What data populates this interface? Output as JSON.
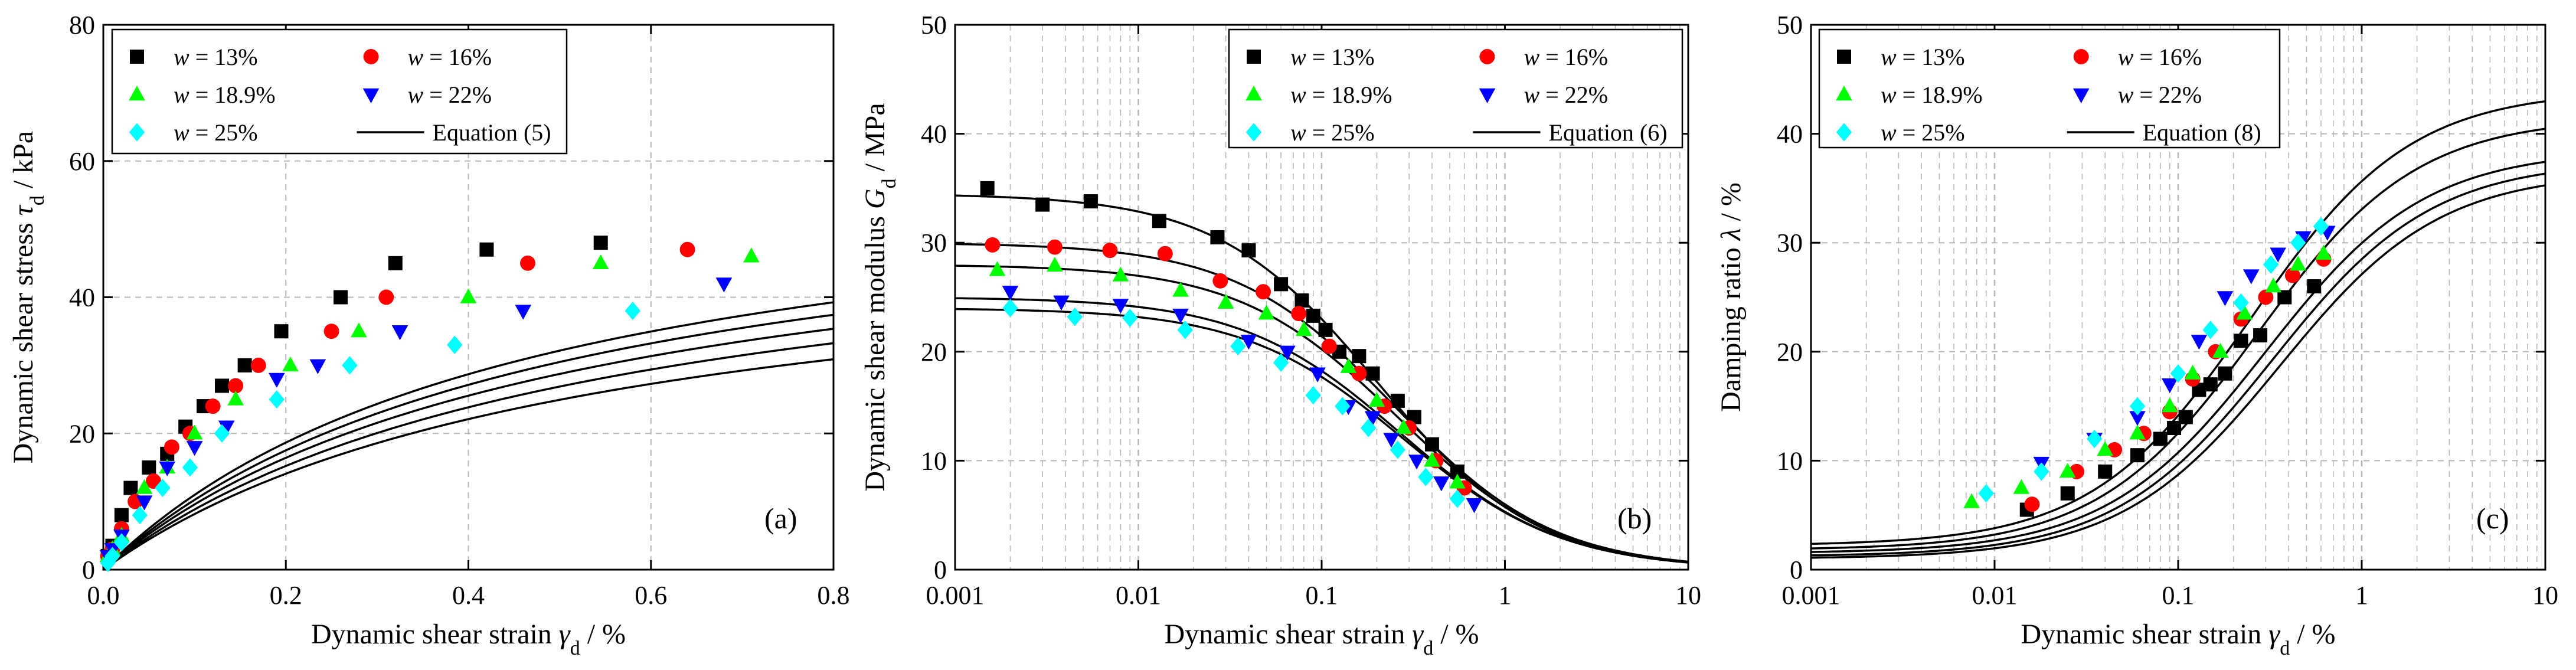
{
  "chart_data": [
    {
      "type": "scatter",
      "panel_label": "(a)",
      "xlabel": "Dynamic shear strain γd / %",
      "ylabel": "Dynamic shear stress τd / kPa",
      "xscale": "linear",
      "xlim": [
        0,
        0.8
      ],
      "ylim": [
        0,
        80
      ],
      "xticks": [
        "0.0",
        "0.2",
        "0.4",
        "0.6",
        "0.8"
      ],
      "yticks": [
        "0",
        "20",
        "40",
        "60",
        "80"
      ],
      "grid": true,
      "legend_position": "top-left",
      "fit_label": "Equation (5)",
      "series": [
        {
          "name": "w = 13%",
          "color": "#000000",
          "marker": "square",
          "x": [
            0.005,
            0.01,
            0.02,
            0.03,
            0.05,
            0.07,
            0.09,
            0.11,
            0.13,
            0.155,
            0.195,
            0.26,
            0.32,
            0.42,
            0.545
          ],
          "y": [
            2,
            3.5,
            8,
            12,
            15,
            17,
            21,
            24,
            27,
            30,
            35,
            40,
            45,
            47,
            48
          ],
          "fit": {
            "a": 0.0075,
            "b": 0.0161
          }
        },
        {
          "name": "w = 16%",
          "color": "#ff0000",
          "marker": "circle",
          "x": [
            0.005,
            0.01,
            0.02,
            0.035,
            0.055,
            0.075,
            0.095,
            0.12,
            0.145,
            0.17,
            0.25,
            0.31,
            0.465,
            0.64
          ],
          "y": [
            2,
            3,
            6,
            10,
            13,
            18,
            20,
            24,
            27,
            30,
            35,
            40,
            45,
            47
          ],
          "fit": {
            "a": 0.0081,
            "b": 0.0166
          }
        },
        {
          "name": "w = 18.9%",
          "color": "#00ff00",
          "marker": "triangle-up",
          "x": [
            0.005,
            0.01,
            0.02,
            0.045,
            0.07,
            0.1,
            0.145,
            0.205,
            0.28,
            0.4,
            0.545,
            0.71
          ],
          "y": [
            2,
            3,
            5,
            12,
            15,
            20,
            25,
            30,
            35,
            40,
            45,
            46
          ],
          "fit": {
            "a": 0.0087,
            "b": 0.0174
          }
        },
        {
          "name": "w = 22%",
          "color": "#0000ff",
          "marker": "triangle-down",
          "x": [
            0.005,
            0.01,
            0.02,
            0.045,
            0.07,
            0.1,
            0.135,
            0.19,
            0.235,
            0.325,
            0.46,
            0.68
          ],
          "y": [
            2,
            3,
            5,
            10,
            15,
            18,
            21,
            28,
            30,
            35,
            38,
            42
          ],
          "fit": {
            "a": 0.0095,
            "b": 0.0182
          }
        },
        {
          "name": "w = 25%",
          "color": "#00ffff",
          "marker": "diamond",
          "x": [
            0.005,
            0.01,
            0.02,
            0.04,
            0.065,
            0.095,
            0.13,
            0.19,
            0.27,
            0.385,
            0.58
          ],
          "y": [
            1,
            2,
            4,
            8,
            12,
            15,
            20,
            25,
            30,
            33,
            38
          ],
          "fit": {
            "a": 0.0103,
            "b": 0.0195
          }
        }
      ]
    },
    {
      "type": "scatter",
      "panel_label": "(b)",
      "xlabel": "Dynamic shear strain γd / %",
      "ylabel": "Dynamic shear modulus Gd / MPa",
      "xscale": "log",
      "xlim": [
        0.001,
        10
      ],
      "ylim": [
        0,
        50
      ],
      "xticks": [
        "0.001",
        "0.01",
        "0.1",
        "1",
        "10"
      ],
      "yticks": [
        "0",
        "10",
        "20",
        "30",
        "40",
        "50"
      ],
      "grid": true,
      "legend_position": "top-right",
      "fit_label": "Equation (6)",
      "series": [
        {
          "name": "w = 13%",
          "color": "#000000",
          "marker": "square",
          "x": [
            0.0015,
            0.003,
            0.0055,
            0.013,
            0.027,
            0.04,
            0.06,
            0.078,
            0.09,
            0.105,
            0.125,
            0.16,
            0.19,
            0.26,
            0.32,
            0.4,
            0.55
          ],
          "y": [
            35,
            33.5,
            33.8,
            32,
            30.5,
            29.3,
            26.2,
            24.7,
            23.3,
            22,
            20,
            19.6,
            18,
            15.5,
            14,
            11.5,
            9
          ],
          "fit": {
            "g0": 34.5,
            "gr": 0.2
          }
        },
        {
          "name": "w = 16%",
          "color": "#ff0000",
          "marker": "circle",
          "x": [
            0.0016,
            0.0035,
            0.007,
            0.014,
            0.028,
            0.048,
            0.075,
            0.11,
            0.16,
            0.22,
            0.3,
            0.42,
            0.6
          ],
          "y": [
            29.8,
            29.6,
            29.3,
            29,
            26.5,
            25.5,
            23.5,
            20.5,
            18,
            15,
            13,
            10,
            7.5
          ],
          "fit": {
            "g0": 30.0,
            "gr": 0.25
          }
        },
        {
          "name": "w = 18.9%",
          "color": "#00ff00",
          "marker": "triangle-up",
          "x": [
            0.0017,
            0.0035,
            0.008,
            0.017,
            0.03,
            0.05,
            0.08,
            0.14,
            0.2,
            0.28,
            0.4,
            0.55
          ],
          "y": [
            27.5,
            27.9,
            27,
            25.6,
            24.5,
            23.5,
            22,
            18.6,
            15.5,
            13,
            10,
            8
          ],
          "fit": {
            "g0": 28.0,
            "gr": 0.26
          }
        },
        {
          "name": "w = 22%",
          "color": "#0000ff",
          "marker": "triangle-down",
          "x": [
            0.002,
            0.0038,
            0.008,
            0.017,
            0.04,
            0.065,
            0.095,
            0.14,
            0.19,
            0.24,
            0.33,
            0.45,
            0.68
          ],
          "y": [
            25.5,
            24.6,
            24.3,
            23.4,
            21,
            20,
            18,
            15,
            14,
            12,
            10,
            8,
            6
          ],
          "fit": {
            "g0": 25.0,
            "gr": 0.27
          }
        },
        {
          "name": "w = 25%",
          "color": "#00ffff",
          "marker": "diamond",
          "x": [
            0.002,
            0.0045,
            0.009,
            0.018,
            0.035,
            0.06,
            0.09,
            0.13,
            0.18,
            0.26,
            0.37,
            0.55
          ],
          "y": [
            24,
            23.2,
            23.1,
            22,
            20.5,
            19,
            16,
            15,
            13,
            11,
            8.5,
            6.5
          ],
          "fit": {
            "g0": 24.0,
            "gr": 0.28
          }
        }
      ]
    },
    {
      "type": "scatter",
      "panel_label": "(c)",
      "xlabel": "Dynamic shear strain γd / %",
      "ylabel": "Damping ratio λ / %",
      "xscale": "log",
      "xlim": [
        0.001,
        10
      ],
      "ylim": [
        0,
        50
      ],
      "xticks": [
        "0.001",
        "0.01",
        "0.1",
        "1",
        "10"
      ],
      "yticks": [
        "0",
        "10",
        "20",
        "30",
        "40",
        "50"
      ],
      "grid": true,
      "legend_position": "top-left",
      "fit_label": "Equation (8)",
      "series": [
        {
          "name": "w = 13%",
          "color": "#000000",
          "marker": "square",
          "x": [
            0.015,
            0.025,
            0.04,
            0.06,
            0.08,
            0.095,
            0.11,
            0.13,
            0.15,
            0.18,
            0.22,
            0.28,
            0.38,
            0.55
          ],
          "y": [
            5.5,
            7,
            9,
            10.5,
            12,
            13,
            14,
            16.5,
            17,
            18,
            21,
            21.5,
            25,
            26
          ],
          "fit": {
            "lmin": 1.0,
            "lmax": 36.5,
            "gr": 0.36
          }
        },
        {
          "name": "w = 16%",
          "color": "#ff0000",
          "marker": "circle",
          "x": [
            0.016,
            0.028,
            0.045,
            0.065,
            0.09,
            0.12,
            0.16,
            0.22,
            0.3,
            0.42,
            0.62
          ],
          "y": [
            6,
            9,
            11,
            12.5,
            14.5,
            17.5,
            20,
            23,
            25,
            27,
            28.5
          ],
          "fit": {
            "lmin": 1.2,
            "lmax": 37.5,
            "gr": 0.33
          }
        },
        {
          "name": "w = 18.9%",
          "color": "#00ff00",
          "marker": "triangle-up",
          "x": [
            0.0075,
            0.014,
            0.025,
            0.04,
            0.06,
            0.09,
            0.12,
            0.17,
            0.23,
            0.33,
            0.45,
            0.62
          ],
          "y": [
            6.2,
            7.5,
            9,
            11,
            12.5,
            15,
            18,
            20,
            23.5,
            26,
            28,
            29
          ],
          "fit": {
            "lmin": 1.5,
            "lmax": 38.5,
            "gr": 0.3
          }
        },
        {
          "name": "w = 22%",
          "color": "#0000ff",
          "marker": "triangle-down",
          "x": [
            0.018,
            0.035,
            0.06,
            0.09,
            0.13,
            0.18,
            0.25,
            0.35,
            0.48,
            0.65
          ],
          "y": [
            9.8,
            12,
            14,
            17,
            21,
            25,
            27,
            29,
            30.5,
            31
          ],
          "fit": {
            "lmin": 1.8,
            "lmax": 41.5,
            "gr": 0.27
          }
        },
        {
          "name": "w = 25%",
          "color": "#00ffff",
          "marker": "diamond",
          "x": [
            0.009,
            0.018,
            0.035,
            0.06,
            0.1,
            0.15,
            0.22,
            0.32,
            0.45,
            0.6
          ],
          "y": [
            7,
            9,
            12,
            15,
            18,
            22,
            24.5,
            28,
            30,
            31.5
          ],
          "fit": {
            "lmin": 2.2,
            "lmax": 44.0,
            "gr": 0.25
          }
        }
      ]
    }
  ]
}
